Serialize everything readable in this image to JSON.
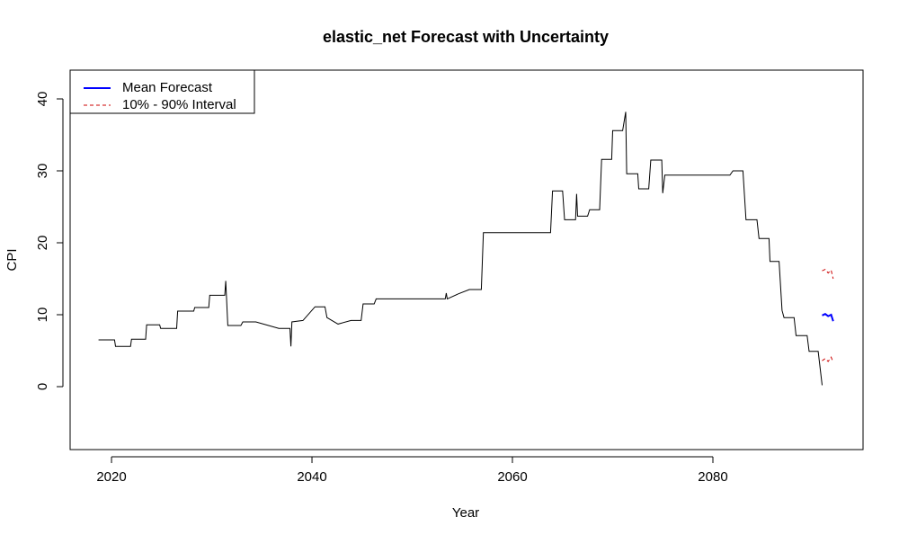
{
  "chart_data": {
    "type": "line",
    "title": "elastic_net Forecast with Uncertainty",
    "x_label": "Year",
    "y_label": "CPI",
    "xlim": [
      2015.87,
      2094.98
    ],
    "ylim": [
      -8.75,
      44
    ],
    "xticks": [
      2020,
      2040,
      2060,
      2080
    ],
    "yticks": [
      0,
      10,
      20,
      30,
      40
    ],
    "legend_position": "top-left",
    "series": [
      {
        "color": "#000000",
        "style": "solid",
        "x": [
          2018.7,
          2020.3,
          2020.4,
          2021.9,
          2022.0,
          2023.4,
          2023.5,
          2024.8,
          2024.9,
          2026.5,
          2026.6,
          2028.2,
          2028.3,
          2029.7,
          2029.8,
          2031.3,
          2031.4,
          2031.6,
          2032.9,
          2033.1,
          2034.4,
          2036.7,
          2037.8,
          2037.9,
          2038.0,
          2039.1,
          2040.3,
          2041.3,
          2041.5,
          2042.6,
          2043.9,
          2044.9,
          2045.1,
          2046.2,
          2046.4,
          2053.3,
          2053.4,
          2053.5,
          2054.6,
          2055.7,
          2056.9,
          2057.1,
          2063.8,
          2064.0,
          2065.0,
          2065.2,
          2066.3,
          2066.4,
          2066.5,
          2067.5,
          2067.7,
          2068.7,
          2068.9,
          2069.9,
          2070.0,
          2071.0,
          2071.3,
          2071.4,
          2072.5,
          2072.6,
          2073.6,
          2073.8,
          2074.9,
          2075.0,
          2075.2,
          2081.7,
          2082.0,
          2083.0,
          2083.3,
          2084.4,
          2084.6,
          2085.6,
          2085.7,
          2086.6,
          2086.9,
          2087.1,
          2088.1,
          2088.3,
          2089.4,
          2089.6,
          2090.5,
          2090.9
        ],
        "values": [
          6.5,
          6.5,
          5.6,
          5.6,
          6.6,
          6.6,
          8.6,
          8.6,
          8.1,
          8.1,
          10.5,
          10.5,
          11,
          11,
          12.7,
          12.7,
          14.7,
          8.5,
          8.5,
          9,
          9,
          8.1,
          8.1,
          5.6,
          9,
          9.2,
          11.1,
          11.1,
          9.6,
          8.7,
          9.2,
          9.2,
          11.5,
          11.5,
          12.2,
          12.2,
          13,
          12.2,
          12.9,
          13.5,
          13.5,
          21.4,
          21.4,
          27.2,
          27.2,
          23.2,
          23.2,
          26.8,
          23.7,
          23.7,
          24.6,
          24.6,
          31.6,
          31.6,
          35.6,
          35.6,
          38.2,
          29.6,
          29.6,
          27.5,
          27.5,
          31.5,
          31.5,
          26.9,
          29.4,
          29.4,
          30,
          30,
          23.2,
          23.2,
          20.6,
          20.6,
          17.4,
          17.4,
          10.6,
          9.6,
          9.6,
          7.1,
          7.1,
          4.9,
          4.9,
          0.2
        ]
      },
      {
        "name": "Mean Forecast",
        "color": "#0000ff",
        "style": "solid",
        "x": [
          2090.9,
          2091.2,
          2091.5,
          2091.8,
          2092.0
        ],
        "values": [
          9.9,
          10.1,
          9.8,
          10.0,
          9.1
        ]
      },
      {
        "name": "10% - 90% Interval",
        "color": "#cc0000",
        "style": "dashed",
        "x": [
          2090.9,
          2091.2,
          2091.5,
          2091.8,
          2092.0
        ],
        "upper": [
          16.1,
          16.3,
          15.8,
          16.2,
          15.0
        ],
        "lower": [
          3.6,
          3.9,
          3.5,
          4.1,
          3.4
        ]
      }
    ]
  }
}
